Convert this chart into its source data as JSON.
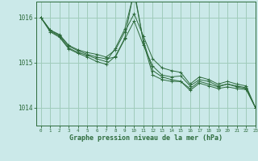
{
  "background_color": "#cbe9e9",
  "grid_color": "#a0ccbb",
  "line_color": "#2d6b3c",
  "xlabel": "Graphe pression niveau de la mer (hPa)",
  "xlim": [
    -0.5,
    23
  ],
  "ylim": [
    1013.6,
    1016.35
  ],
  "yticks": [
    1014,
    1015,
    1016
  ],
  "xticks": [
    0,
    1,
    2,
    3,
    4,
    5,
    6,
    7,
    8,
    9,
    10,
    11,
    12,
    13,
    14,
    15,
    16,
    17,
    18,
    19,
    20,
    21,
    22,
    23
  ],
  "series": [
    [
      1016.0,
      1015.72,
      1015.62,
      1015.38,
      1015.28,
      1015.22,
      1015.18,
      1015.12,
      1015.28,
      1015.68,
      1016.08,
      1015.58,
      1015.08,
      1014.88,
      1014.82,
      1014.78,
      1014.52,
      1014.68,
      1014.62,
      1014.52,
      1014.58,
      1014.52,
      1014.48,
      1014.0
    ],
    [
      1016.0,
      1015.72,
      1015.6,
      1015.36,
      1015.26,
      1015.18,
      1015.12,
      1015.08,
      1015.12,
      1015.52,
      1015.92,
      1015.38,
      1014.92,
      1014.72,
      1014.68,
      1014.7,
      1014.48,
      1014.62,
      1014.58,
      1014.48,
      1014.52,
      1014.48,
      1014.44,
      1014.0
    ],
    [
      1016.0,
      1015.7,
      1015.58,
      1015.32,
      1015.22,
      1015.16,
      1015.08,
      1015.02,
      1015.32,
      1015.74,
      1016.55,
      1015.48,
      1014.82,
      1014.68,
      1014.62,
      1014.58,
      1014.42,
      1014.58,
      1014.52,
      1014.46,
      1014.52,
      1014.46,
      1014.42,
      1014.0
    ],
    [
      1016.0,
      1015.68,
      1015.56,
      1015.3,
      1015.2,
      1015.12,
      1015.02,
      1014.96,
      1015.14,
      1015.54,
      1016.62,
      1015.44,
      1014.72,
      1014.62,
      1014.58,
      1014.58,
      1014.38,
      1014.54,
      1014.48,
      1014.42,
      1014.46,
      1014.42,
      1014.4,
      1014.0
    ]
  ]
}
